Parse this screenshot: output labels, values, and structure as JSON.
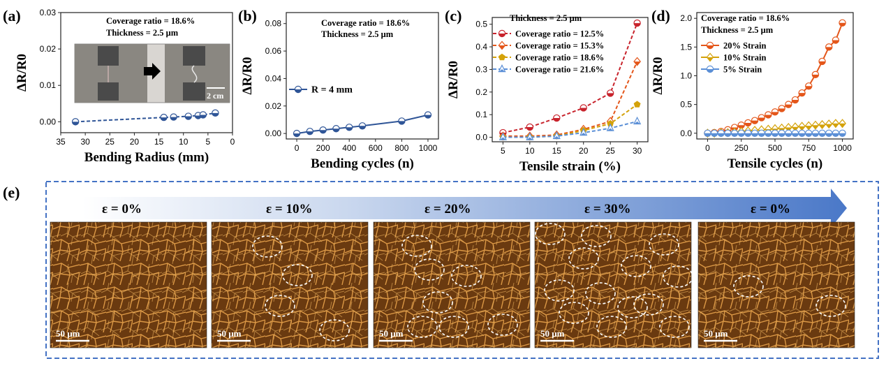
{
  "panel_labels": [
    "(a)",
    "(b)",
    "(c)",
    "(d)",
    "(e)"
  ],
  "colors": {
    "blue": "#2f5597",
    "red": "#c8232c",
    "orange": "#e4561a",
    "gold": "#d4a20a",
    "lightblue": "#5b8fd6",
    "frame": "#4472c4"
  },
  "chart_data": [
    {
      "id": "a",
      "type": "line",
      "xlabel": "Bending Radius (mm)",
      "ylabel": "ΔR/R0",
      "xlim": [
        35,
        0
      ],
      "ylim": [
        -0.003,
        0.03
      ],
      "xticks": [
        35,
        30,
        25,
        20,
        15,
        10,
        5,
        0
      ],
      "yticks": [
        0.0,
        0.01,
        0.02,
        0.03
      ],
      "ytick_labels": [
        "0.00",
        "0.01",
        "0.02",
        "0.03"
      ],
      "annotations": [
        "Coverage ratio = 18.6%",
        "Thickness = 2.5 μm"
      ],
      "inset": {
        "scale_label": "2 cm"
      },
      "series": [
        {
          "marker": "circle",
          "dashed": true,
          "color": "#2f5597",
          "x": [
            32,
            14,
            12,
            9,
            7,
            6,
            3.5
          ],
          "values": [
            0.0,
            0.0012,
            0.0013,
            0.0015,
            0.0017,
            0.0019,
            0.0024
          ]
        }
      ]
    },
    {
      "id": "b",
      "type": "line",
      "xlabel": "Bending cycles (n)",
      "ylabel": "ΔR/R0",
      "xlim": [
        -80,
        1080
      ],
      "ylim": [
        -0.004,
        0.088
      ],
      "xticks": [
        0,
        200,
        400,
        600,
        800,
        1000
      ],
      "yticks": [
        0.0,
        0.02,
        0.04,
        0.06,
        0.08
      ],
      "ytick_labels": [
        "0.00",
        "0.02",
        "0.04",
        "0.06",
        "0.08"
      ],
      "annotations": [
        "Coverage ratio = 18.6%",
        "Thickness = 2.5 μm"
      ],
      "series": [
        {
          "name": "R = 4 mm",
          "marker": "circle",
          "dashed": false,
          "color": "#2f5597",
          "x": [
            0,
            100,
            200,
            300,
            400,
            500,
            800,
            1000
          ],
          "values": [
            0.0,
            0.0015,
            0.0025,
            0.0035,
            0.0045,
            0.0055,
            0.009,
            0.0135
          ]
        }
      ]
    },
    {
      "id": "c",
      "type": "line",
      "xlabel": "Tensile strain (%)",
      "ylabel": "ΔR/R0",
      "xlim": [
        3,
        32
      ],
      "ylim": [
        -0.02,
        0.53
      ],
      "xticks": [
        5,
        10,
        15,
        20,
        25,
        30
      ],
      "yticks": [
        0.0,
        0.1,
        0.2,
        0.3,
        0.4,
        0.5
      ],
      "ytick_labels": [
        "0.0",
        "0.1",
        "0.2",
        "0.3",
        "0.4",
        "0.5"
      ],
      "annotations": [
        "Thickness = 2.5 μm"
      ],
      "x": [
        5,
        10,
        15,
        20,
        25,
        30
      ],
      "series": [
        {
          "name": "Coverage ratio = 12.5%",
          "marker": "circle",
          "dashed": true,
          "color": "#c8232c",
          "values": [
            0.02,
            0.045,
            0.085,
            0.13,
            0.195,
            0.505
          ]
        },
        {
          "name": "Coverage ratio = 15.3%",
          "marker": "diamond",
          "dashed": true,
          "color": "#e4561a",
          "values": [
            0.005,
            0.005,
            0.01,
            0.035,
            0.07,
            0.335
          ]
        },
        {
          "name": "Coverage ratio = 18.6%",
          "marker": "pentagon",
          "dashed": true,
          "color": "#d4a20a",
          "values": [
            0.0,
            0.0,
            0.005,
            0.03,
            0.06,
            0.145
          ]
        },
        {
          "name": "Coverage ratio = 21.6%",
          "marker": "triangle",
          "dashed": true,
          "color": "#5b8fd6",
          "values": [
            0.0,
            0.0,
            0.005,
            0.02,
            0.04,
            0.07
          ]
        }
      ]
    },
    {
      "id": "d",
      "type": "line",
      "xlabel": "Tensile cycles (n)",
      "ylabel": "ΔR/R0",
      "xlim": [
        -80,
        1080
      ],
      "ylim": [
        -0.1,
        2.1
      ],
      "xticks": [
        0,
        250,
        500,
        750,
        1000
      ],
      "yticks": [
        0.0,
        0.5,
        1.0,
        1.5,
        2.0
      ],
      "ytick_labels": [
        "0.0",
        "0.5",
        "1.0",
        "1.5",
        "2.0"
      ],
      "annotations": [
        "Coverage ratio = 18.6%",
        "Thickness = 2.5 μm"
      ],
      "x": [
        0,
        50,
        100,
        150,
        200,
        250,
        300,
        350,
        400,
        450,
        500,
        550,
        600,
        650,
        700,
        750,
        800,
        850,
        900,
        950,
        1000
      ],
      "series": [
        {
          "name": "20% Strain",
          "marker": "circle",
          "dashed": false,
          "color": "#e4561a",
          "values": [
            0.0,
            0.01,
            0.03,
            0.06,
            0.1,
            0.14,
            0.18,
            0.22,
            0.27,
            0.32,
            0.37,
            0.43,
            0.5,
            0.58,
            0.7,
            0.82,
            1.02,
            1.25,
            1.5,
            1.62,
            1.92
          ]
        },
        {
          "name": "10% Strain",
          "marker": "diamond",
          "dashed": false,
          "color": "#d4a20a",
          "values": [
            0.0,
            0.0,
            0.01,
            0.01,
            0.02,
            0.03,
            0.04,
            0.05,
            0.06,
            0.07,
            0.08,
            0.09,
            0.1,
            0.11,
            0.12,
            0.13,
            0.14,
            0.15,
            0.16,
            0.17,
            0.17
          ]
        },
        {
          "name": "5% Strain",
          "marker": "circle",
          "dashed": false,
          "color": "#5b8fd6",
          "values": [
            0.0,
            0.0,
            0.0,
            0.0,
            0.0,
            0.0,
            0.0,
            0.0,
            0.0,
            0.0,
            0.0,
            0.0,
            0.0,
            0.0,
            0.0,
            0.0,
            0.0,
            0.0,
            0.0,
            0.0,
            0.0
          ]
        }
      ]
    }
  ],
  "panel_e": {
    "strain_labels": [
      "ε = 0%",
      "ε = 10%",
      "ε = 20%",
      "ε = 30%",
      "ε = 0%"
    ],
    "scale_label": "50 μm"
  }
}
